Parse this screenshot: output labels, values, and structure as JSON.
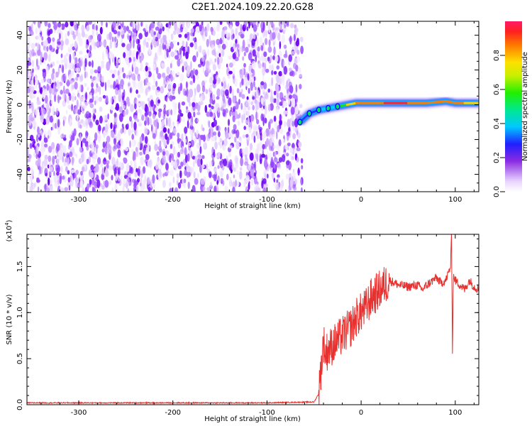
{
  "title": "C2E1.2024.109.22.20.G28",
  "chart_data": [
    {
      "type": "heatmap",
      "xlabel": "Height of straight line (km)",
      "ylabel": "Frequency (Hz)",
      "xlim": [
        -355,
        125
      ],
      "ylim": [
        -50,
        48
      ],
      "xticks": [
        -300,
        -200,
        -100,
        0,
        100
      ],
      "yticks": [
        -40,
        -20,
        0,
        20,
        40
      ],
      "colorbar": {
        "label": "Normalized spectral amplitude",
        "range": [
          0,
          1
        ],
        "ticks": [
          0.0,
          0.2,
          0.4,
          0.6,
          0.8
        ]
      },
      "noise_region_x": [
        -355,
        -65
      ],
      "signal_track": {
        "x": [
          -65,
          -55,
          -45,
          -35,
          -25,
          -15,
          -5,
          5,
          25,
          50,
          70,
          90,
          100,
          110,
          125
        ],
        "frequency": [
          -10,
          -5,
          -3,
          -2,
          -1,
          0,
          1,
          1,
          1,
          1,
          1,
          2,
          1,
          1,
          1
        ],
        "amplitude": [
          0.55,
          0.45,
          0.5,
          0.55,
          0.6,
          0.7,
          0.8,
          0.85,
          0.95,
          0.95,
          0.85,
          0.9,
          0.85,
          0.8,
          0.75
        ]
      }
    },
    {
      "type": "line",
      "xlabel": "Height of straight line (km)",
      "ylabel": "SNR (10 * v/v)",
      "yscale_label": "(x10",
      "yscale_exp": "4",
      "xlim": [
        -355,
        125
      ],
      "ylim": [
        0,
        1.85
      ],
      "xticks": [
        -300,
        -200,
        -100,
        0,
        100
      ],
      "yticks": [
        0.0,
        0.5,
        1.0,
        1.5
      ],
      "series": [
        {
          "color": "#e8312e",
          "x": [
            -355,
            -300,
            -200,
            -100,
            -50,
            -45,
            -42,
            -40,
            -38,
            -35,
            -30,
            -25,
            -20,
            -15,
            -10,
            -5,
            0,
            5,
            10,
            20,
            25,
            30,
            40,
            50,
            60,
            65,
            70,
            80,
            85,
            90,
            95,
            96,
            97,
            98,
            100,
            105,
            110,
            115,
            120,
            125
          ],
          "y": [
            0.02,
            0.02,
            0.02,
            0.02,
            0.03,
            0.12,
            0.45,
            0.7,
            0.55,
            0.6,
            0.65,
            0.7,
            0.75,
            0.8,
            0.85,
            0.95,
            1.0,
            1.05,
            1.15,
            1.25,
            1.3,
            1.35,
            1.3,
            1.28,
            1.3,
            1.25,
            1.3,
            1.38,
            1.32,
            1.35,
            1.5,
            1.85,
            0.6,
            1.4,
            1.35,
            1.3,
            1.25,
            1.35,
            1.28,
            1.25
          ]
        }
      ]
    }
  ]
}
